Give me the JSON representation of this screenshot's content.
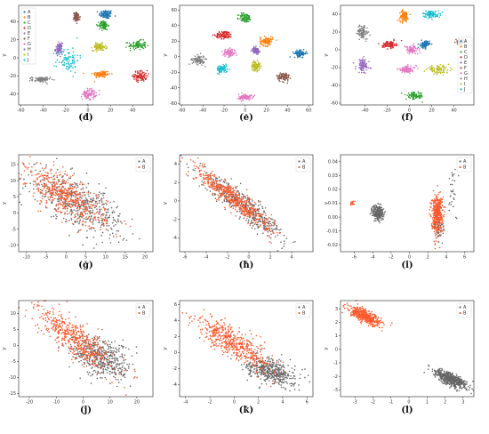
{
  "colors": {
    "A": "#1f77b4",
    "B": "#ff7f0e",
    "C": "#2ca02c",
    "D": "#d62728",
    "E": "#9467bd",
    "F": "#8c564b",
    "G": "#e377c2",
    "H": "#7f7f7f",
    "I": "#bcbd22",
    "J": "#17becf",
    "scatterA": "#666666",
    "scatterB": "#ff5a2d"
  },
  "chart_data": [
    {
      "id": "d",
      "caption": "(d)",
      "type": "scatter",
      "xlabel": "x",
      "ylabel": "y",
      "xlim": [
        -62,
        58
      ],
      "ylim": [
        -52,
        58
      ],
      "xticks": [
        "-60",
        "-40",
        "-20",
        "0",
        "20",
        "40"
      ],
      "yticks": [
        "-40",
        "-20",
        "0",
        "20",
        "40"
      ],
      "legend_position": "top-left",
      "legend": [
        "A",
        "B",
        "C",
        "D",
        "E",
        "F",
        "G",
        "H",
        "I",
        "J"
      ],
      "clusters": [
        {
          "series": "A",
          "cx": 16,
          "cy": 48,
          "sx": 3,
          "sy": 2.5
        },
        {
          "series": "B",
          "cx": 12,
          "cy": -18,
          "sx": 4,
          "sy": 2
        },
        {
          "series": "C",
          "cx": 44,
          "cy": 14,
          "sx": 4,
          "sy": 2.5
        },
        {
          "series": "D",
          "cx": 47,
          "cy": -20,
          "sx": 3,
          "sy": 3
        },
        {
          "series": "E",
          "cx": -26,
          "cy": 10,
          "sx": 1.5,
          "sy": 3
        },
        {
          "series": "F",
          "cx": -10,
          "cy": 45,
          "sx": 1.5,
          "sy": 2.5
        },
        {
          "series": "G",
          "cx": 1,
          "cy": -40,
          "sx": 3,
          "sy": 3
        },
        {
          "series": "H",
          "cx": -42,
          "cy": -24,
          "sx": 4,
          "sy": 1.5
        },
        {
          "series": "I",
          "cx": 10,
          "cy": 12,
          "sx": 3,
          "sy": 2
        },
        {
          "series": "J",
          "cx": -18,
          "cy": -2,
          "sx": 5,
          "sy": 7
        },
        {
          "series": "C",
          "cx": 14,
          "cy": 36,
          "sx": 2,
          "sy": 2.5
        }
      ]
    },
    {
      "id": "e",
      "caption": "(e)",
      "type": "scatter",
      "xlabel": "x",
      "ylabel": "y",
      "xlim": [
        -62,
        64
      ],
      "ylim": [
        -62,
        66
      ],
      "xticks": [
        "-60",
        "-40",
        "-20",
        "0",
        "20",
        "40",
        "60"
      ],
      "yticks": [
        "-60",
        "-40",
        "-20",
        "0",
        "20",
        "40",
        "60"
      ],
      "legend_position": "none",
      "clusters": [
        {
          "series": "C",
          "cx": 0,
          "cy": 50,
          "sx": 3,
          "sy": 3
        },
        {
          "series": "D",
          "cx": -20,
          "cy": 28,
          "sx": 4,
          "sy": 2.5
        },
        {
          "series": "B",
          "cx": 20,
          "cy": 20,
          "sx": 3,
          "sy": 3
        },
        {
          "series": "A",
          "cx": 52,
          "cy": 4,
          "sx": 3,
          "sy": 2
        },
        {
          "series": "G",
          "cx": -15,
          "cy": 5,
          "sx": 3,
          "sy": 2.5
        },
        {
          "series": "H",
          "cx": -44,
          "cy": -4,
          "sx": 3,
          "sy": 3
        },
        {
          "series": "J",
          "cx": -22,
          "cy": -16,
          "sx": 2.5,
          "sy": 2.5
        },
        {
          "series": "I",
          "cx": 10,
          "cy": -12,
          "sx": 2,
          "sy": 3
        },
        {
          "series": "E",
          "cx": 10,
          "cy": 8,
          "sx": 1.5,
          "sy": 2
        },
        {
          "series": "F",
          "cx": 36,
          "cy": -26,
          "sx": 3,
          "sy": 3
        },
        {
          "series": "G",
          "cx": 0,
          "cy": -52,
          "sx": 3,
          "sy": 2
        }
      ]
    },
    {
      "id": "f",
      "caption": "(f)",
      "type": "scatter",
      "xlabel": "x",
      "ylabel": "y",
      "xlim": [
        -62,
        58
      ],
      "ylim": [
        -62,
        50
      ],
      "xticks": [
        "-40",
        "-20",
        "0",
        "20",
        "40"
      ],
      "yticks": [
        "-60",
        "-40",
        "-20",
        "0",
        "20",
        "40"
      ],
      "legend_position": "right",
      "legend": [
        "A",
        "B",
        "C",
        "D",
        "E",
        "F",
        "G",
        "H",
        "I",
        "J"
      ],
      "clusters": [
        {
          "series": "J",
          "cx": 20,
          "cy": 40,
          "sx": 4,
          "sy": 2
        },
        {
          "series": "B",
          "cx": -5,
          "cy": 38,
          "sx": 2,
          "sy": 3
        },
        {
          "series": "H",
          "cx": -42,
          "cy": 20,
          "sx": 2.5,
          "sy": 4
        },
        {
          "series": "D",
          "cx": -18,
          "cy": 6,
          "sx": 3,
          "sy": 2
        },
        {
          "series": "G",
          "cx": 2,
          "cy": 0,
          "sx": 3,
          "sy": 2.5
        },
        {
          "series": "A",
          "cx": 14,
          "cy": 6,
          "sx": 2,
          "sy": 2
        },
        {
          "series": "F",
          "cx": 46,
          "cy": 9,
          "sx": 2,
          "sy": 1.5
        },
        {
          "series": "E",
          "cx": -42,
          "cy": -18,
          "sx": 3,
          "sy": 4
        },
        {
          "series": "G",
          "cx": -2,
          "cy": -22,
          "sx": 4,
          "sy": 2
        },
        {
          "series": "I",
          "cx": 26,
          "cy": -22,
          "sx": 5,
          "sy": 2
        },
        {
          "series": "C",
          "cx": 5,
          "cy": -52,
          "sx": 4,
          "sy": 2
        }
      ]
    },
    {
      "id": "g",
      "caption": "(g)",
      "type": "scatter",
      "xlabel": "x",
      "ylabel": "y",
      "xlim": [
        -12,
        22
      ],
      "ylim": [
        -12,
        18
      ],
      "xticks": [
        "-10",
        "-5",
        "0",
        "5",
        "10",
        "15",
        "20"
      ],
      "yticks": [
        "-10",
        "-5",
        "0",
        "5",
        "10",
        "15"
      ],
      "legend_position": "top-right",
      "legend": [
        "A",
        "B"
      ],
      "series": [
        {
          "name": "A",
          "n": 500,
          "mx": 3,
          "my": 3,
          "sx": 6,
          "sy": 5,
          "rho": -0.7
        },
        {
          "name": "B",
          "n": 500,
          "mx": 0,
          "my": 5,
          "sx": 5,
          "sy": 4.5,
          "rho": -0.7
        }
      ]
    },
    {
      "id": "h",
      "caption": "(h)",
      "type": "scatter",
      "xlabel": "x",
      "ylabel": "y",
      "xlim": [
        -6.5,
        6
      ],
      "ylim": [
        -5.5,
        5
      ],
      "xticks": [
        "-6",
        "-4",
        "-2",
        "0",
        "2",
        "4"
      ],
      "yticks": [
        "-4",
        "-2",
        "0",
        "2",
        "4"
      ],
      "legend_position": "top-right",
      "legend": [
        "A",
        "B"
      ],
      "series": [
        {
          "name": "A",
          "n": 450,
          "mx": -0.5,
          "my": -0.5,
          "sx": 2,
          "sy": 1.9,
          "rho": -0.93
        },
        {
          "name": "B",
          "n": 500,
          "mx": -1.5,
          "my": 0.3,
          "sx": 1.8,
          "sy": 1.7,
          "rho": -0.93
        }
      ]
    },
    {
      "id": "i",
      "caption": "(i)",
      "type": "scatter",
      "xlabel": "x",
      "ylabel": "y",
      "xlim": [
        -7.5,
        7
      ],
      "ylim": [
        -0.025,
        0.045
      ],
      "xticks": [
        "-6",
        "-4",
        "-2",
        "0",
        "2",
        "4",
        "6"
      ],
      "yticks": [
        "-0.02",
        "-0.01",
        "0.00",
        "0.01",
        "0.02",
        "0.03",
        "0.04"
      ],
      "legend_position": "top-right",
      "legend": [
        "A",
        "B"
      ],
      "clusters": [
        {
          "series": "scatterA",
          "cx": -3.4,
          "cy": 0.003,
          "sx": 0.3,
          "sy": 0.003,
          "n": 220
        },
        {
          "series": "scatterB",
          "cx": -6.2,
          "cy": 0.01,
          "sx": 0.1,
          "sy": 0.0008,
          "n": 20
        },
        {
          "series": "scatterB",
          "cx": 3.0,
          "cy": 0.002,
          "sx": 0.3,
          "sy": 0.007,
          "n": 450
        },
        {
          "series": "scatterA",
          "cx": 4.7,
          "cy": 0.02,
          "sx": 0.3,
          "sy": 0.012,
          "n": 30
        },
        {
          "series": "scatterA",
          "cx": 3.2,
          "cy": -0.01,
          "sx": 0.3,
          "sy": 0.004,
          "n": 25
        }
      ]
    },
    {
      "id": "j",
      "caption": "(j)",
      "type": "scatter",
      "xlabel": "x",
      "ylabel": "y",
      "xlim": [
        -24,
        26
      ],
      "ylim": [
        -16,
        14
      ],
      "xticks": [
        "-20",
        "-10",
        "0",
        "10",
        "20"
      ],
      "yticks": [
        "-15",
        "-10",
        "-5",
        "0",
        "5",
        "10"
      ],
      "legend_position": "top-right",
      "legend": [
        "A",
        "B"
      ],
      "series": [
        {
          "name": "A",
          "n": 450,
          "mx": 7,
          "my": -4,
          "sx": 5.5,
          "sy": 3.5,
          "rho": -0.4
        },
        {
          "name": "B",
          "n": 500,
          "mx": -3,
          "my": 2,
          "sx": 7,
          "sy": 4.5,
          "rho": -0.8
        }
      ]
    },
    {
      "id": "k",
      "caption": "(k)",
      "type": "scatter",
      "xlabel": "x",
      "ylabel": "y",
      "xlim": [
        -4.5,
        6.5
      ],
      "ylim": [
        -5.5,
        6.5
      ],
      "xticks": [
        "-4",
        "-2",
        "0",
        "2",
        "4",
        "6"
      ],
      "yticks": [
        "-4",
        "-2",
        "0",
        "2",
        "4",
        "6"
      ],
      "legend_position": "top-right",
      "legend": [
        "A",
        "B"
      ],
      "series": [
        {
          "name": "A",
          "n": 450,
          "mx": 3,
          "my": -2.3,
          "sx": 1,
          "sy": 0.9,
          "rho": -0.5
        },
        {
          "name": "B",
          "n": 500,
          "mx": 0,
          "my": 1.2,
          "sx": 1.6,
          "sy": 1.6,
          "rho": -0.8
        }
      ]
    },
    {
      "id": "l",
      "caption": "(l)",
      "type": "scatter",
      "xlabel": "x",
      "ylabel": "y",
      "xlim": [
        -3.8,
        3.6
      ],
      "ylim": [
        -3.5,
        3.6
      ],
      "xticks": [
        "-3",
        "-2",
        "-1",
        "0",
        "1",
        "2",
        "3"
      ],
      "yticks": [
        "-3",
        "-2",
        "-1",
        "0",
        "1",
        "2",
        "3"
      ],
      "legend_position": "top-right",
      "legend": [
        "A",
        "B"
      ],
      "series": [
        {
          "name": "A",
          "n": 500,
          "mx": 2.3,
          "my": -2.2,
          "sx": 0.45,
          "sy": 0.35,
          "rho": -0.75
        },
        {
          "name": "B",
          "n": 450,
          "mx": -2.4,
          "my": 2.4,
          "sx": 0.45,
          "sy": 0.35,
          "rho": -0.75
        }
      ]
    }
  ]
}
